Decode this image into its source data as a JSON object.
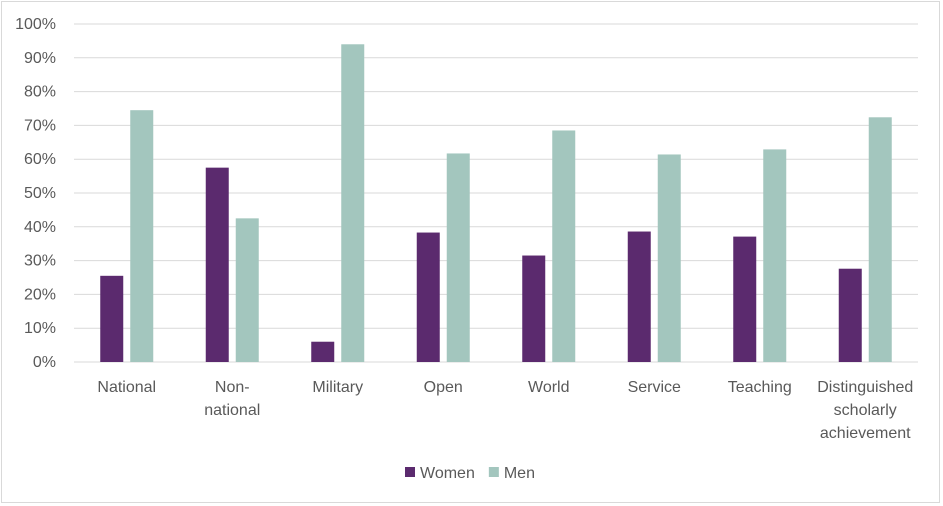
{
  "chart_data": {
    "type": "bar",
    "categories": [
      [
        "National"
      ],
      [
        "Non-",
        "national"
      ],
      [
        "Military"
      ],
      [
        "Open"
      ],
      [
        "World"
      ],
      [
        "Service"
      ],
      [
        "Teaching"
      ],
      [
        "Distinguished",
        "scholarly",
        "achievement"
      ]
    ],
    "series": [
      {
        "name": "Women",
        "color": "#5b2a6e",
        "values": [
          25.5,
          57.5,
          6,
          38.3,
          31.5,
          38.6,
          37.1,
          27.6
        ]
      },
      {
        "name": "Men",
        "color": "#a3c6be",
        "values": [
          74.5,
          42.5,
          94,
          61.7,
          68.5,
          61.4,
          62.9,
          72.4
        ]
      }
    ],
    "ylim": [
      0,
      100
    ],
    "yticks": [
      "0%",
      "10%",
      "20%",
      "30%",
      "40%",
      "50%",
      "60%",
      "70%",
      "80%",
      "90%",
      "100%"
    ],
    "grid": true,
    "legend_position": "bottom"
  }
}
